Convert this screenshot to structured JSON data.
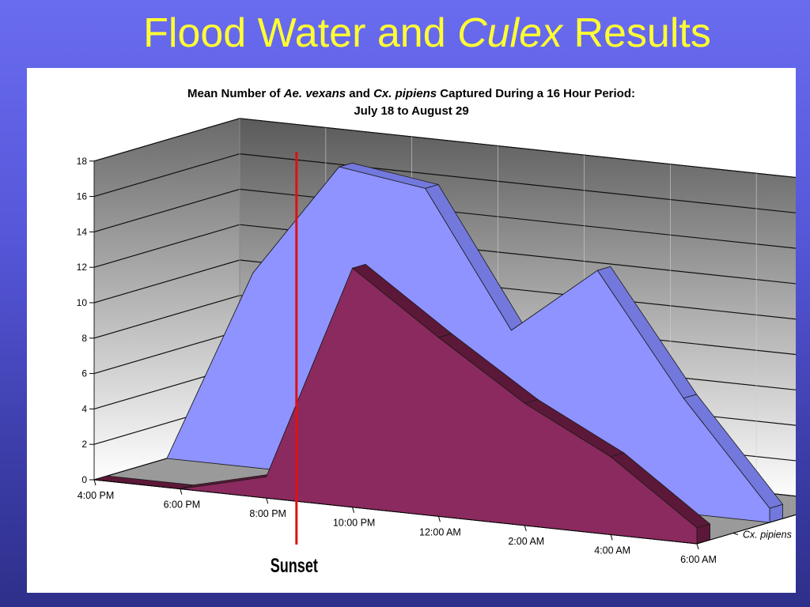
{
  "slide": {
    "title_pre": "Flood Water and ",
    "title_italic": "Culex",
    "title_post": " Results"
  },
  "chart_title": {
    "line1_a": "Mean Number of ",
    "line1_b": "Ae. vexans",
    "line1_c": " and ",
    "line1_d": "Cx. pipiens",
    "line1_e": " Captured During a 16 Hour Period:",
    "line2": "July 18 to August 29"
  },
  "annotation": {
    "label": "Sunset",
    "color": "#e01010"
  },
  "colors": {
    "vexans_front": "#8e93ff",
    "vexans_top": "#7378dc",
    "vexans_edge": "#2a2c8a",
    "pipiens_front": "#8b2a5e",
    "pipiens_top": "#5c1838",
    "wall_top": "#5a5a5a",
    "wall_bottom": "#ffffff",
    "floor": "#9a9a9a"
  },
  "chart_data": {
    "type": "area",
    "title": "Mean Number of Ae. vexans and Cx. pipiens Captured During a 16 Hour Period: July 18 to August 29",
    "xlabel": "",
    "ylabel": "",
    "x": [
      "4:00 PM",
      "6:00 PM",
      "8:00 PM",
      "10:00 PM",
      "12:00 AM",
      "2:00 AM",
      "4:00 AM",
      "6:00 AM"
    ],
    "y_ticks": [
      "0",
      "2",
      "4",
      "6",
      "8",
      "10",
      "12",
      "14",
      "16",
      "18"
    ],
    "ylim": [
      0,
      18
    ],
    "grid": true,
    "series": [
      {
        "name": "Ae. vexans",
        "values": [
          0,
          11,
          17.5,
          16.8,
          9.3,
          13.2,
          6.5,
          0.8
        ]
      },
      {
        "name": "Cx. pipiens",
        "values": [
          0,
          0,
          1.2,
          13.5,
          10.1,
          6.9,
          4.4,
          0.9
        ]
      }
    ],
    "legend": "right, depth axis",
    "annotation": "Sunset (vertical red line between 8:00 PM and 10:00 PM)"
  }
}
